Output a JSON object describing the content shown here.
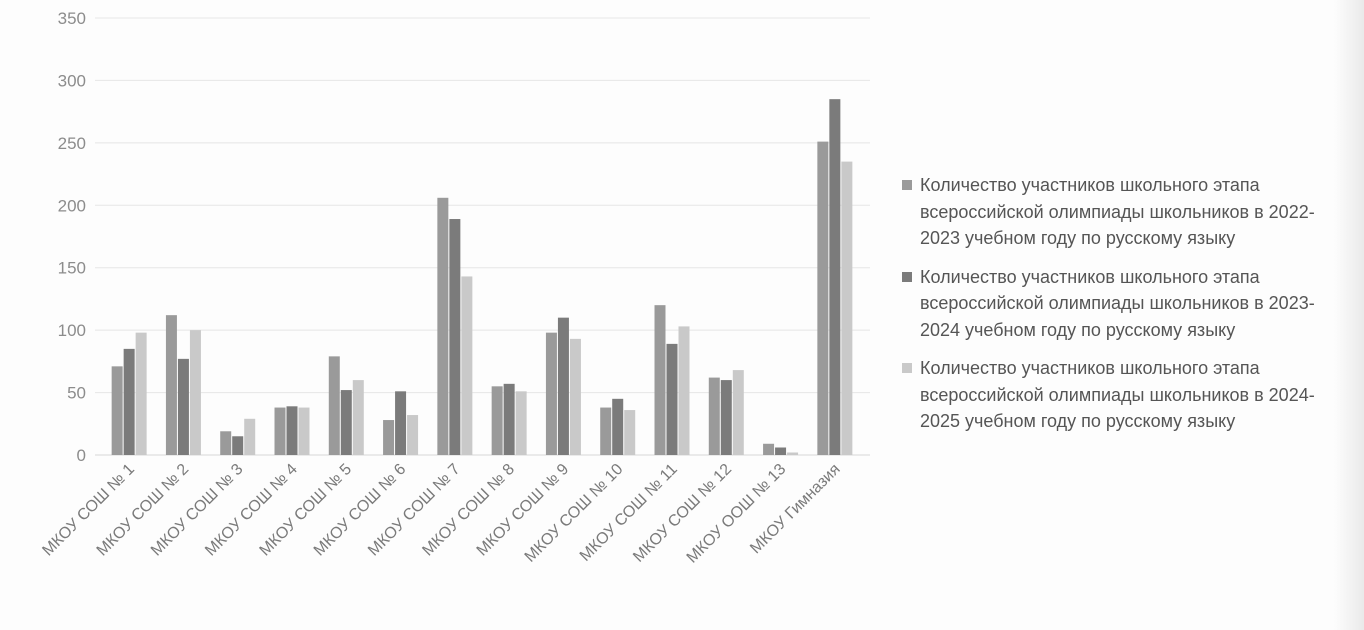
{
  "chart_data": {
    "type": "bar",
    "title": "",
    "xlabel": "",
    "ylabel": "",
    "ylim": [
      0,
      350
    ],
    "yticks": [
      0,
      50,
      100,
      150,
      200,
      250,
      300,
      350
    ],
    "grid": true,
    "legend": "right",
    "colors": [
      "#9a9a9a",
      "#7b7b7b",
      "#c9c9c9"
    ],
    "categories": [
      "МКОУ СОШ № 1",
      "МКОУ СОШ № 2",
      "МКОУ СОШ № 3",
      "МКОУ СОШ № 4",
      "МКОУ СОШ № 5",
      "МКОУ СОШ № 6",
      "МКОУ СОШ № 7",
      "МКОУ СОШ № 8",
      "МКОУ СОШ № 9",
      "МКОУ СОШ № 10",
      "МКОУ СОШ № 11",
      "МКОУ СОШ № 12",
      "МКОУ ООШ № 13",
      "МКОУ Гимназия"
    ],
    "series": [
      {
        "name": "Количество участников школьного этапа всероссийской олимпиады школьников в 2022-2023 учебном году по русскому языку",
        "values": [
          71,
          112,
          19,
          38,
          79,
          28,
          206,
          55,
          98,
          38,
          120,
          62,
          9,
          251
        ]
      },
      {
        "name": "Количество участников школьного этапа всероссийской олимпиады школьников в 2023-2024 учебном году по русскому языку",
        "values": [
          85,
          77,
          15,
          39,
          52,
          51,
          189,
          57,
          110,
          45,
          89,
          60,
          6,
          285
        ]
      },
      {
        "name": "Количество участников школьного этапа всероссийской олимпиады школьников в 2024-2025 учебном году по русскому языку",
        "values": [
          98,
          100,
          29,
          38,
          60,
          32,
          143,
          51,
          93,
          36,
          103,
          68,
          2,
          235
        ]
      }
    ]
  }
}
